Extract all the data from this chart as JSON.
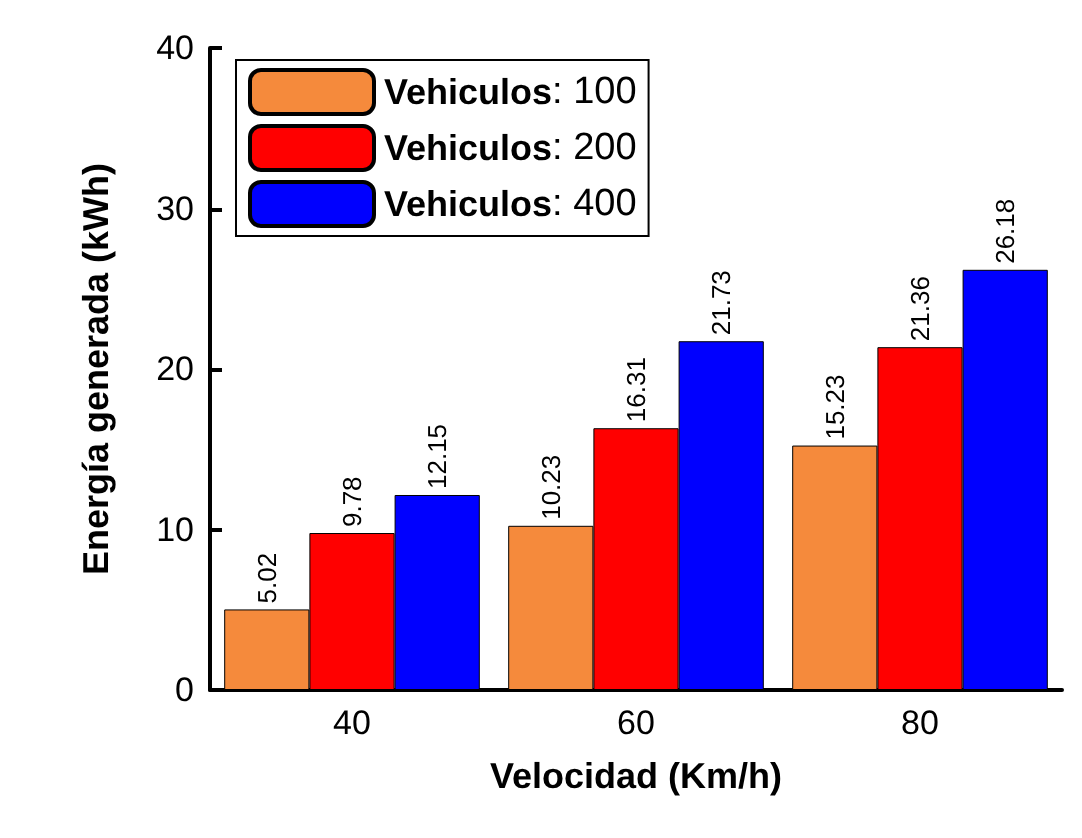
{
  "chart_data": {
    "type": "bar",
    "xlabel": "Velocidad (Km/h)",
    "ylabel": "Energía generada (kWh)",
    "categories": [
      "40",
      "60",
      "80"
    ],
    "series": [
      {
        "name": "Vehiculos: 100",
        "color": "#f58a3c",
        "values": [
          5.02,
          10.23,
          15.23
        ]
      },
      {
        "name": "Vehiculos: 200",
        "color": "#ff0000",
        "values": [
          9.78,
          16.31,
          21.36
        ]
      },
      {
        "name": "Vehiculos: 400",
        "color": "#0000ff",
        "values": [
          12.15,
          21.73,
          26.18
        ]
      }
    ],
    "ylim": [
      0,
      40
    ],
    "yticks": [
      0,
      10,
      20,
      30,
      40
    ],
    "data_labels": true,
    "legend": "top left",
    "grid": false
  }
}
